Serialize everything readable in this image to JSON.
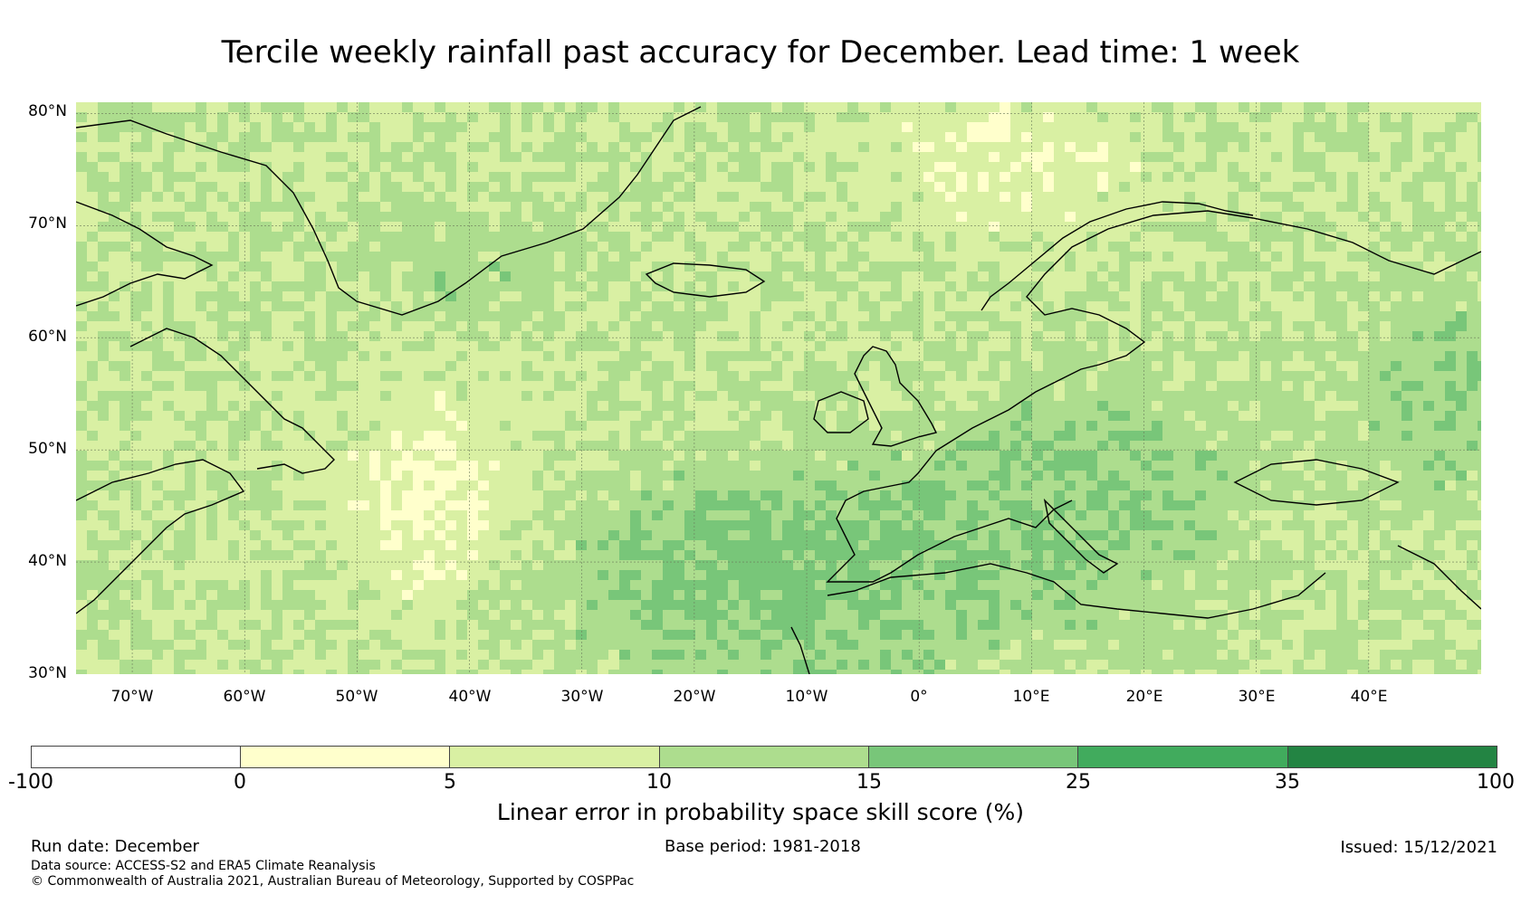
{
  "title": "Tercile weekly rainfall past accuracy for December. Lead time: 1 week",
  "map": {
    "lat_labels": [
      "80°N",
      "70°N",
      "60°N",
      "50°N",
      "40°N",
      "30°N"
    ],
    "lon_labels": [
      "70°W",
      "60°W",
      "50°W",
      "40°W",
      "30°W",
      "20°W",
      "10°W",
      "0°",
      "10°E",
      "20°E",
      "30°E",
      "40°E"
    ],
    "lat_range": [
      30,
      81
    ],
    "lon_range": [
      -75,
      50
    ]
  },
  "colorbar": {
    "ticks": [
      "-100",
      "0",
      "5",
      "10",
      "15",
      "25",
      "35",
      "100"
    ],
    "colors": [
      "#ffffff",
      "#ffffcc",
      "#d9f0a3",
      "#addd8e",
      "#78c679",
      "#41ab5d",
      "#238443"
    ],
    "label": "Linear error in probability space skill score (%)"
  },
  "footer": {
    "run_date": "Run date: December",
    "base_period": "Base period: 1981-2018",
    "issued": "Issued: 15/12/2021",
    "data_source": "Data source: ACCESS-S2 and ERA5 Climate Reanalysis",
    "copyright": "© Commonwealth of Australia 2021, Australian Bureau of Meteorology, Supported by COSPPac"
  }
}
